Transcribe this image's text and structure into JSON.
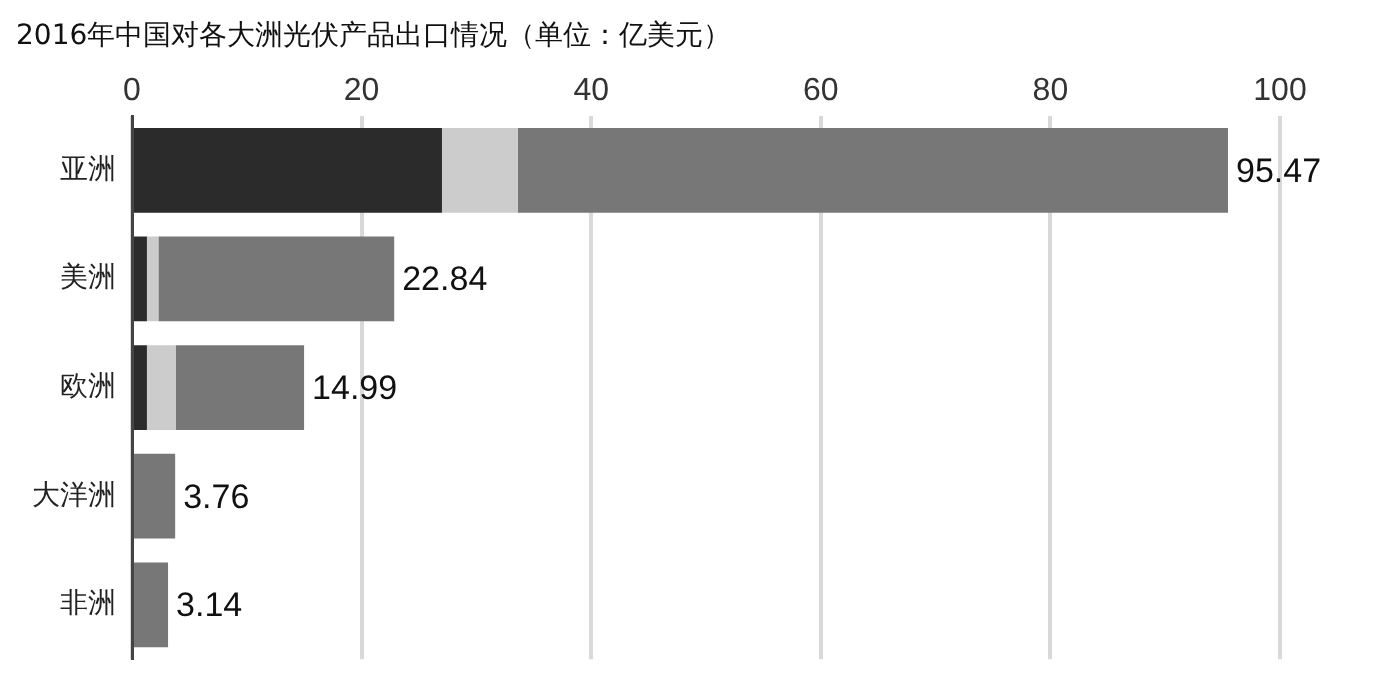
{
  "chart_data": {
    "type": "bar",
    "orientation": "horizontal",
    "stacked": true,
    "title": "2016年中国对各大洲光伏产品出口情况（单位：亿美元）",
    "categories": [
      "亚洲",
      "美洲",
      "欧洲",
      "大洋洲",
      "非洲"
    ],
    "series": [
      {
        "color": "#2b2b2b",
        "values": [
          27,
          1.3,
          1.3,
          null,
          null
        ]
      },
      {
        "color": "#cccccc",
        "values": [
          6.6,
          1.0,
          2.5,
          null,
          null
        ]
      },
      {
        "color": "#777777",
        "values": [
          61.87,
          20.54,
          11.19,
          3.76,
          3.14
        ]
      }
    ],
    "totals": [
      "95.47",
      "22.84",
      "14.99",
      "3.76",
      "3.14"
    ],
    "xlim": [
      0,
      100
    ],
    "xticks": [
      0,
      20,
      40,
      60,
      80,
      100
    ],
    "grid": "x",
    "legend": false
  }
}
